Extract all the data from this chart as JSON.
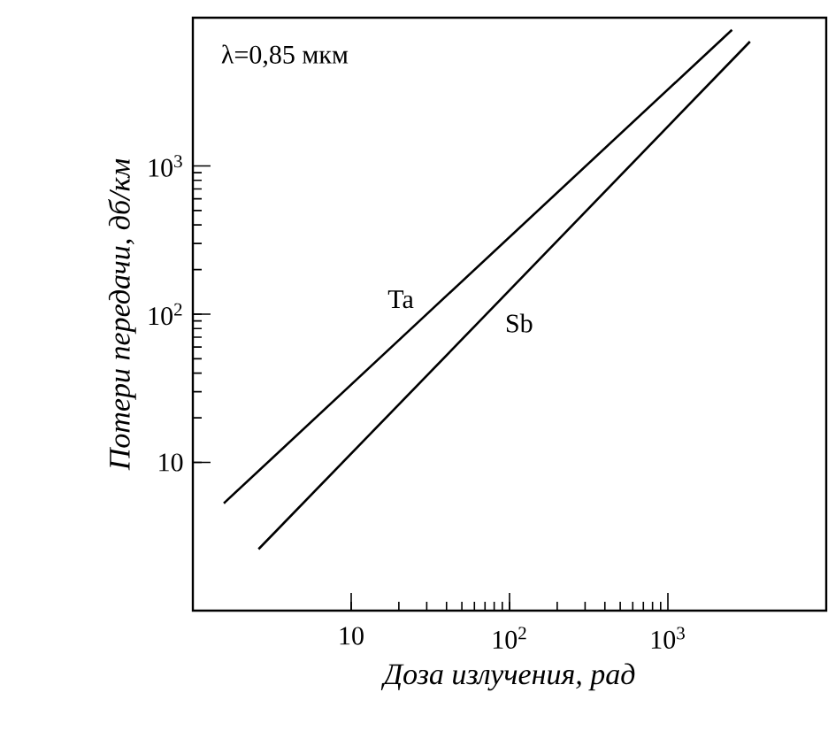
{
  "chart_data": {
    "type": "line",
    "xlabel": "Доза излучения, рад",
    "ylabel": "Потери передачи, дб/км",
    "annotations": [
      "λ=0,85 мкм"
    ],
    "log": "xy",
    "xlim": [
      1,
      10000
    ],
    "ylim": [
      1,
      10000
    ],
    "xticks": [
      10,
      {
        "value": 100,
        "label": "10$^{2}$"
      },
      {
        "value": 1000,
        "label": "10$^{3}$"
      }
    ],
    "yticks": [
      10,
      {
        "value": 100,
        "label": "10$^{2}$"
      },
      {
        "value": 1000,
        "label": "10$^{3}$"
      }
    ],
    "grid": false,
    "legend": false,
    "marker": "none",
    "line_style": "solid",
    "series": [
      {
        "name": "Ta",
        "color": "#000000",
        "x": [
          1.57,
          27,
          2540
        ],
        "values": [
          5.3,
          90,
          8280
        ]
      },
      {
        "name": "Sb",
        "color": "#000000",
        "x": [
          2.6,
          74,
          3300
        ],
        "values": [
          2.6,
          104,
          6900
        ]
      }
    ]
  }
}
